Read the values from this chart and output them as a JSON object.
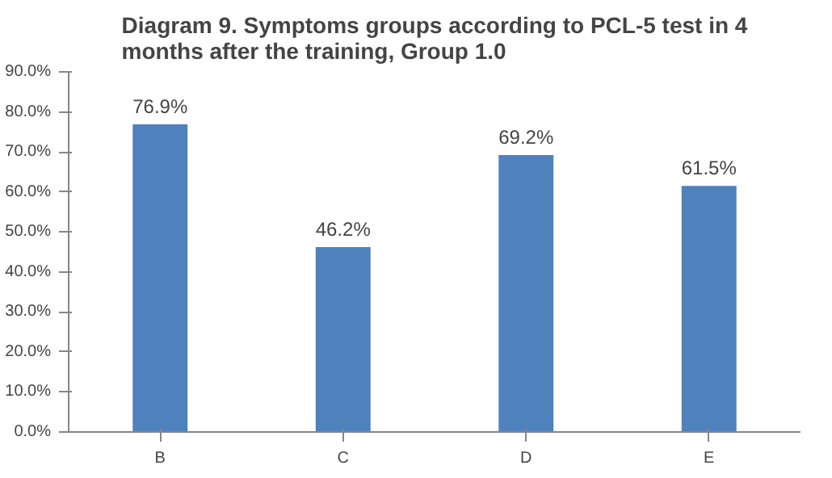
{
  "chart_data": {
    "type": "bar",
    "title": "Diagram 9. Symptoms groups according to PCL-5 test in 4 months after the training, Group 1.0",
    "categories": [
      "B",
      "C",
      "D",
      "E"
    ],
    "values": [
      76.9,
      46.2,
      69.2,
      61.5
    ],
    "value_labels": [
      "76.9%",
      "46.2%",
      "69.2%",
      "61.5%"
    ],
    "color": "#4f81bd",
    "ylim": [
      0,
      90
    ],
    "yticks": [
      {
        "value": 0,
        "label": "0.0%"
      },
      {
        "value": 10,
        "label": "10.0%"
      },
      {
        "value": 20,
        "label": "20.0%"
      },
      {
        "value": 30,
        "label": "30.0%"
      },
      {
        "value": 40,
        "label": "40.0%"
      },
      {
        "value": 50,
        "label": "50.0%"
      },
      {
        "value": 60,
        "label": "60.0%"
      },
      {
        "value": 70,
        "label": "70.0%"
      },
      {
        "value": 80,
        "label": "80.0%"
      },
      {
        "value": 90,
        "label": "90.0%"
      }
    ],
    "grid": false
  }
}
